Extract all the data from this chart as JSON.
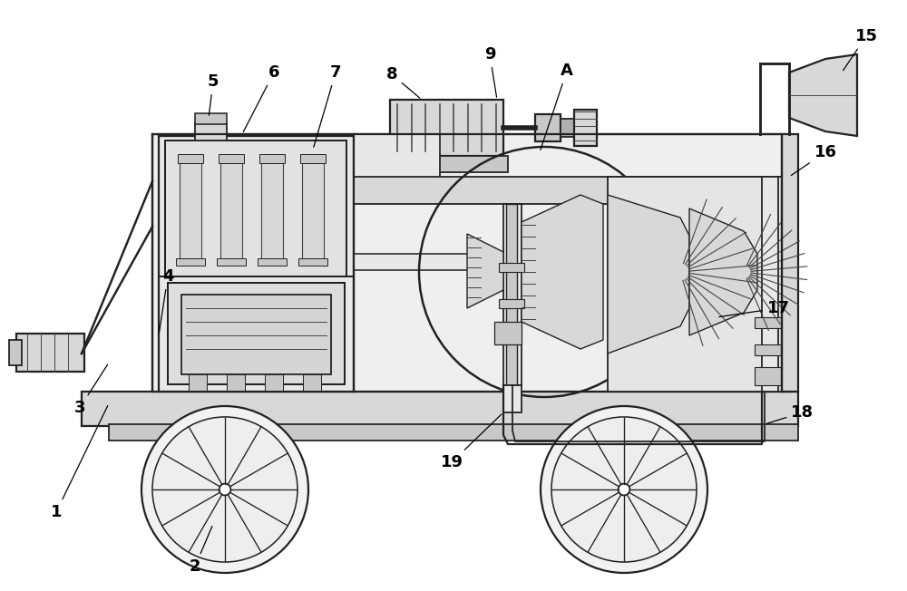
{
  "bg_color": "#ffffff",
  "lc": "#444444",
  "dc": "#222222",
  "figsize": [
    10.0,
    6.52
  ],
  "dpi": 100,
  "wheel_color": "#555555",
  "fill_light": "#e8e8e8",
  "fill_mid": "#d8d8d8",
  "fill_dark": "#c8c8c8"
}
